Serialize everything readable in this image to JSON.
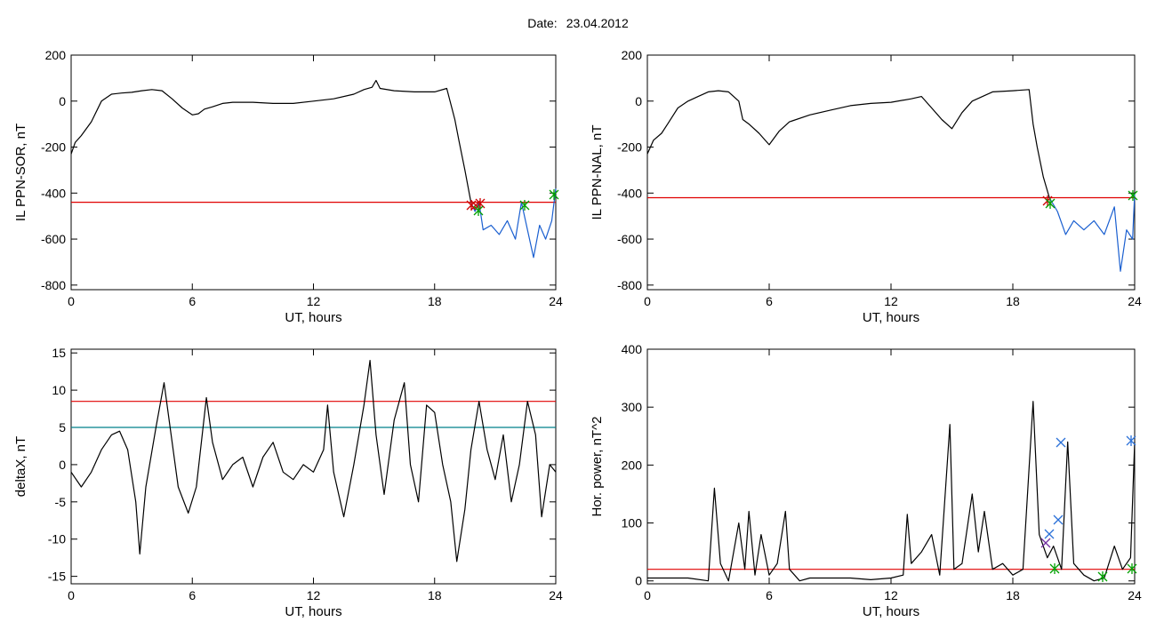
{
  "header": {
    "date_label": "Date:",
    "date_value": "23.04.2012"
  },
  "colors": {
    "trace": "#000000",
    "threshold_red": "#e00000",
    "threshold_teal": "#00808a",
    "substorm_blue": "#1a5fd0",
    "marker_green": "#00a000",
    "marker_red": "#cc0000",
    "marker_purple": "#7030a0",
    "marker_blue": "#2a70d8"
  },
  "chart_data": [
    {
      "type": "line",
      "ylabel": "IL PPN-SOR, nT",
      "xlabel": "UT, hours",
      "xlim": [
        0,
        24
      ],
      "ylim": [
        -820,
        200
      ],
      "xticks": [
        0,
        6,
        12,
        18,
        24
      ],
      "yticks": [
        -800,
        -600,
        -400,
        -200,
        0,
        200
      ],
      "threshold": -440,
      "series": [
        {
          "values": [
            [
              0,
              -230
            ],
            [
              0.2,
              -180
            ],
            [
              0.5,
              -150
            ],
            [
              1.0,
              -90
            ],
            [
              1.5,
              0
            ],
            [
              2.0,
              30
            ],
            [
              2.5,
              35
            ],
            [
              3.0,
              38
            ],
            [
              3.5,
              45
            ],
            [
              4.0,
              50
            ],
            [
              4.5,
              45
            ],
            [
              5.0,
              10
            ],
            [
              5.5,
              -30
            ],
            [
              6.0,
              -60
            ],
            [
              6.3,
              -55
            ],
            [
              6.6,
              -35
            ],
            [
              7.0,
              -25
            ],
            [
              7.5,
              -10
            ],
            [
              8.0,
              -5
            ],
            [
              9.0,
              -5
            ],
            [
              10.0,
              -10
            ],
            [
              11.0,
              -10
            ],
            [
              12.0,
              0
            ],
            [
              13.0,
              10
            ],
            [
              14.0,
              30
            ],
            [
              14.5,
              50
            ],
            [
              14.9,
              60
            ],
            [
              15.1,
              90
            ],
            [
              15.3,
              55
            ],
            [
              16.0,
              45
            ],
            [
              17.0,
              40
            ],
            [
              18.0,
              40
            ],
            [
              18.6,
              55
            ],
            [
              19.0,
              -80
            ],
            [
              19.2,
              -170
            ],
            [
              19.5,
              -300
            ],
            [
              19.8,
              -440
            ]
          ]
        },
        {
          "values": [
            [
              19.8,
              -440
            ],
            [
              20.0,
              -480
            ],
            [
              20.2,
              -440
            ],
            [
              20.4,
              -560
            ],
            [
              20.8,
              -540
            ],
            [
              21.2,
              -580
            ],
            [
              21.6,
              -520
            ],
            [
              22.0,
              -600
            ],
            [
              22.3,
              -440
            ],
            [
              22.6,
              -560
            ],
            [
              22.9,
              -680
            ],
            [
              23.2,
              -540
            ],
            [
              23.5,
              -600
            ],
            [
              23.8,
              -520
            ],
            [
              24.0,
              -380
            ]
          ]
        }
      ]
    },
    {
      "type": "line",
      "ylabel": "IL PPN-NAL, nT",
      "xlabel": "UT, hours",
      "xlim": [
        0,
        24
      ],
      "ylim": [
        -820,
        200
      ],
      "xticks": [
        0,
        6,
        12,
        18,
        24
      ],
      "yticks": [
        -800,
        -600,
        -400,
        -200,
        0,
        200
      ],
      "threshold": -420,
      "series": [
        {
          "values": [
            [
              0,
              -230
            ],
            [
              0.3,
              -170
            ],
            [
              0.7,
              -140
            ],
            [
              1.0,
              -100
            ],
            [
              1.5,
              -30
            ],
            [
              2.0,
              0
            ],
            [
              2.5,
              20
            ],
            [
              3.0,
              40
            ],
            [
              3.5,
              45
            ],
            [
              4.0,
              40
            ],
            [
              4.5,
              0
            ],
            [
              4.7,
              -80
            ],
            [
              5.0,
              -100
            ],
            [
              5.5,
              -140
            ],
            [
              6.0,
              -190
            ],
            [
              6.5,
              -130
            ],
            [
              7.0,
              -90
            ],
            [
              8.0,
              -60
            ],
            [
              9.0,
              -40
            ],
            [
              10.0,
              -20
            ],
            [
              11.0,
              -10
            ],
            [
              12.0,
              -5
            ],
            [
              13.0,
              10
            ],
            [
              13.5,
              20
            ],
            [
              14.0,
              -30
            ],
            [
              14.5,
              -80
            ],
            [
              15.0,
              -120
            ],
            [
              15.5,
              -50
            ],
            [
              16.0,
              0
            ],
            [
              17.0,
              40
            ],
            [
              18.0,
              45
            ],
            [
              18.8,
              50
            ],
            [
              19.0,
              -100
            ],
            [
              19.2,
              -200
            ],
            [
              19.5,
              -330
            ],
            [
              19.8,
              -420
            ]
          ]
        },
        {
          "values": [
            [
              19.8,
              -420
            ],
            [
              20.2,
              -480
            ],
            [
              20.6,
              -580
            ],
            [
              21.0,
              -520
            ],
            [
              21.5,
              -560
            ],
            [
              22.0,
              -520
            ],
            [
              22.5,
              -580
            ],
            [
              23.0,
              -460
            ],
            [
              23.3,
              -740
            ],
            [
              23.6,
              -560
            ],
            [
              23.9,
              -600
            ],
            [
              24.0,
              -400
            ]
          ]
        }
      ]
    },
    {
      "type": "line",
      "ylabel": "deltaX, nT",
      "xlabel": "UT, hours",
      "xlim": [
        0,
        24
      ],
      "ylim": [
        -16,
        15.5
      ],
      "xticks": [
        0,
        6,
        12,
        18,
        24
      ],
      "yticks": [
        -15,
        -10,
        -5,
        0,
        5,
        10,
        15
      ],
      "thresholds": [
        8.5,
        5
      ],
      "series": [
        {
          "values": [
            [
              0,
              -1
            ],
            [
              0.5,
              -3
            ],
            [
              1,
              -1
            ],
            [
              1.5,
              2
            ],
            [
              2,
              4
            ],
            [
              2.4,
              4.5
            ],
            [
              2.8,
              2
            ],
            [
              3.2,
              -5
            ],
            [
              3.4,
              -12
            ],
            [
              3.7,
              -3
            ],
            [
              4.2,
              5
            ],
            [
              4.6,
              11
            ],
            [
              4.9,
              5
            ],
            [
              5.3,
              -3
            ],
            [
              5.8,
              -6.5
            ],
            [
              6.2,
              -3
            ],
            [
              6.7,
              9
            ],
            [
              7.0,
              3
            ],
            [
              7.5,
              -2
            ],
            [
              8,
              0
            ],
            [
              8.5,
              1
            ],
            [
              9,
              -3
            ],
            [
              9.5,
              1
            ],
            [
              10,
              3
            ],
            [
              10.5,
              -1
            ],
            [
              11,
              -2
            ],
            [
              11.5,
              0
            ],
            [
              12,
              -1
            ],
            [
              12.5,
              2
            ],
            [
              12.7,
              8
            ],
            [
              13.0,
              -1
            ],
            [
              13.5,
              -7
            ],
            [
              14,
              0
            ],
            [
              14.5,
              8
            ],
            [
              14.8,
              14
            ],
            [
              15.1,
              4
            ],
            [
              15.5,
              -4
            ],
            [
              16.0,
              6
            ],
            [
              16.5,
              11
            ],
            [
              16.8,
              0
            ],
            [
              17.2,
              -5
            ],
            [
              17.6,
              8
            ],
            [
              18.0,
              7
            ],
            [
              18.4,
              0
            ],
            [
              18.8,
              -5
            ],
            [
              19.1,
              -13
            ],
            [
              19.5,
              -6
            ],
            [
              19.8,
              2
            ],
            [
              20.2,
              8.5
            ],
            [
              20.6,
              2
            ],
            [
              21,
              -2
            ],
            [
              21.4,
              4
            ],
            [
              21.8,
              -5
            ],
            [
              22.2,
              0
            ],
            [
              22.6,
              8.5
            ],
            [
              23.0,
              4
            ],
            [
              23.3,
              -7
            ],
            [
              23.7,
              0
            ],
            [
              24,
              -1
            ]
          ]
        }
      ]
    },
    {
      "type": "line",
      "ylabel": "Hor. power, nT^2",
      "xlabel": "UT, hours",
      "xlim": [
        0,
        24
      ],
      "ylim": [
        -5,
        400
      ],
      "xticks": [
        0,
        6,
        12,
        18,
        24
      ],
      "yticks": [
        0,
        100,
        200,
        300,
        400
      ],
      "threshold": 20,
      "series": [
        {
          "values": [
            [
              0,
              5
            ],
            [
              2,
              5
            ],
            [
              3,
              0
            ],
            [
              3.3,
              160
            ],
            [
              3.6,
              30
            ],
            [
              4.0,
              0
            ],
            [
              4.5,
              100
            ],
            [
              4.8,
              20
            ],
            [
              5.0,
              120
            ],
            [
              5.3,
              10
            ],
            [
              5.6,
              80
            ],
            [
              6.0,
              10
            ],
            [
              6.4,
              30
            ],
            [
              6.8,
              120
            ],
            [
              7.0,
              20
            ],
            [
              7.5,
              0
            ],
            [
              8,
              5
            ],
            [
              9,
              5
            ],
            [
              10,
              5
            ],
            [
              11,
              2
            ],
            [
              12,
              5
            ],
            [
              12.6,
              10
            ],
            [
              12.8,
              115
            ],
            [
              13.0,
              30
            ],
            [
              13.5,
              50
            ],
            [
              14,
              80
            ],
            [
              14.4,
              10
            ],
            [
              14.9,
              270
            ],
            [
              15.1,
              20
            ],
            [
              15.5,
              30
            ],
            [
              16.0,
              150
            ],
            [
              16.3,
              50
            ],
            [
              16.6,
              120
            ],
            [
              17,
              20
            ],
            [
              17.5,
              30
            ],
            [
              18,
              10
            ],
            [
              18.5,
              20
            ],
            [
              19.0,
              310
            ],
            [
              19.3,
              80
            ],
            [
              19.7,
              40
            ],
            [
              20.0,
              60
            ],
            [
              20.4,
              20
            ],
            [
              20.7,
              240
            ],
            [
              21.0,
              30
            ],
            [
              21.5,
              10
            ],
            [
              22,
              0
            ],
            [
              22.5,
              5
            ],
            [
              23.0,
              60
            ],
            [
              23.4,
              20
            ],
            [
              23.8,
              40
            ],
            [
              24,
              240
            ]
          ]
        }
      ]
    }
  ]
}
